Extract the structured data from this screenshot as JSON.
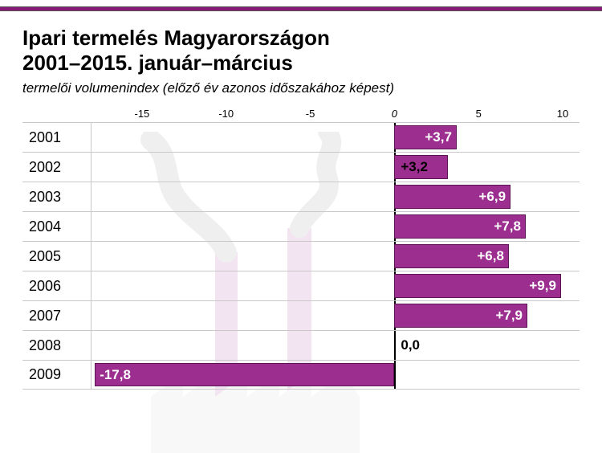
{
  "header": {
    "title_line1": "Ipari termelés Magyarországon",
    "title_line2": "2001–2015. január–március",
    "subtitle": "termelői volumenindex (előző év azonos időszakához képest)"
  },
  "chart": {
    "type": "bar-horizontal",
    "xmin": -18,
    "xmax": 11,
    "xticks": [
      -15,
      -10,
      -5,
      0,
      5,
      10
    ],
    "zero_x": 0,
    "bar_color": "#9b2e8f",
    "bar_border": "#5a1552",
    "grid_color": "#c8c8c8",
    "top_border_color": "#8a1a7a",
    "background_color": "#ffffff",
    "year_fontsize": 18,
    "label_fontsize": 17,
    "rows": [
      {
        "year": "2001",
        "value": 3.7,
        "label": "+3,7",
        "label_pos": "inside"
      },
      {
        "year": "2002",
        "value": 3.2,
        "label": "+3,2",
        "label_pos": "outside-right"
      },
      {
        "year": "2003",
        "value": 6.9,
        "label": "+6,9",
        "label_pos": "inside"
      },
      {
        "year": "2004",
        "value": 7.8,
        "label": "+7,8",
        "label_pos": "inside"
      },
      {
        "year": "2005",
        "value": 6.8,
        "label": "+6,8",
        "label_pos": "inside"
      },
      {
        "year": "2006",
        "value": 9.9,
        "label": "+9,9",
        "label_pos": "inside"
      },
      {
        "year": "2007",
        "value": 7.9,
        "label": "+7,9",
        "label_pos": "inside"
      },
      {
        "year": "2008",
        "value": 0.0,
        "label": "0,0",
        "label_pos": "outside-right"
      },
      {
        "year": "2009",
        "value": -17.8,
        "label": "-17,8",
        "label_pos": "inside"
      }
    ]
  }
}
